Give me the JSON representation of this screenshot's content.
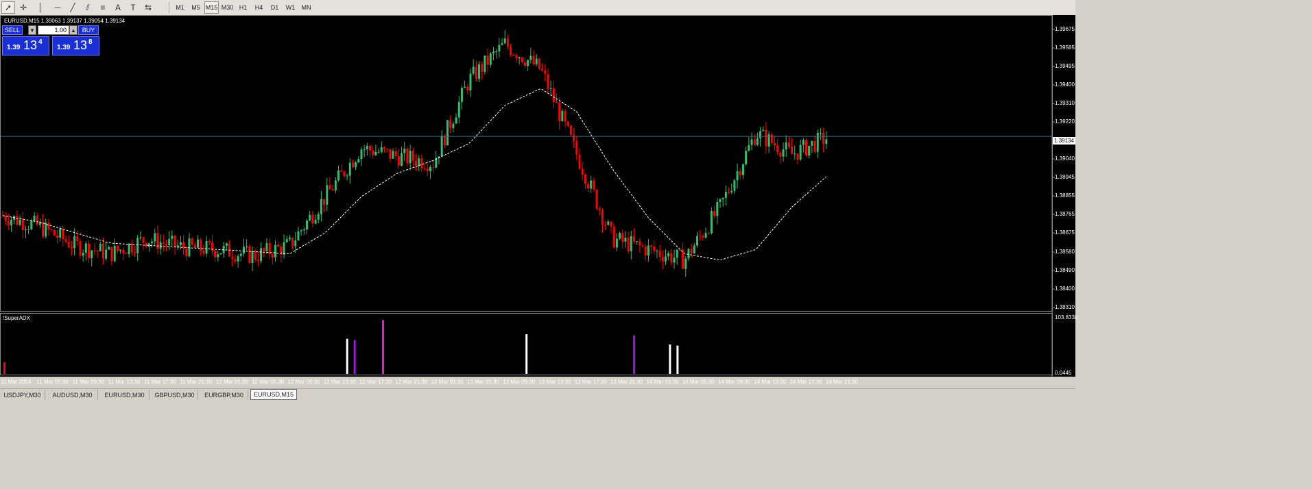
{
  "toolbar": {
    "tools": [
      {
        "name": "cursor-icon",
        "glyph": "➚"
      },
      {
        "name": "crosshair-icon",
        "glyph": "✛"
      },
      {
        "name": "vertical-line-icon",
        "glyph": "│"
      },
      {
        "name": "horizontal-line-icon",
        "glyph": "─"
      },
      {
        "name": "trendline-icon",
        "glyph": "╱"
      },
      {
        "name": "channel-icon",
        "glyph": "⫽"
      },
      {
        "name": "fibonacci-icon",
        "glyph": "≡"
      },
      {
        "name": "text-icon",
        "glyph": "A"
      },
      {
        "name": "text-label-icon",
        "glyph": "T"
      },
      {
        "name": "arrows-icon",
        "glyph": "⇆"
      }
    ],
    "periods": [
      "M1",
      "M5",
      "M15",
      "M30",
      "H1",
      "H4",
      "D1",
      "W1",
      "MN"
    ],
    "active_period": "M15"
  },
  "chart": {
    "symbol_line": "EURUSD,M15  1.39063 1.39137 1.39054 1.39134",
    "trade_panel": {
      "sell_label": "SELL",
      "buy_label": "BUY",
      "lot": "1.00",
      "sell_small": "1.39",
      "sell_big": "13",
      "sell_sup": "4",
      "buy_small": "1.39",
      "buy_big": "13",
      "buy_sup": "8"
    },
    "current_price": "1.39134",
    "price_axis": [
      "1.39675",
      "1.39585",
      "1.39495",
      "1.39400",
      "1.39310",
      "1.39220",
      "1.39040",
      "1.38945",
      "1.38855",
      "1.38765",
      "1.38675",
      "1.38580",
      "1.38490",
      "1.38400",
      "1.38310"
    ],
    "indicator_name": "!SuperADX",
    "indicator_axis_top": "103.8338",
    "indicator_axis_bottom": "0.0445",
    "time_axis": [
      "11 Mar 2014",
      "11 Mar 05:30",
      "11 Mar 09:30",
      "11 Mar 13:30",
      "11 Mar 17:30",
      "11 Mar 21:30",
      "12 Mar 01:30",
      "12 Mar 05:30",
      "12 Mar 09:30",
      "12 Mar 13:30",
      "12 Mar 17:30",
      "12 Mar 21:30",
      "13 Mar 01:30",
      "13 Mar 05:30",
      "13 Mar 09:30",
      "13 Mar 13:30",
      "13 Mar 17:30",
      "13 Mar 21:30",
      "14 Mar 01:30",
      "14 Mar 05:30",
      "14 Mar 09:30",
      "14 Mar 13:30",
      "14 Mar 17:30",
      "14 Mar 21:30"
    ],
    "colors": {
      "bull": "#2fbf71",
      "bear": "#ff0000",
      "ma": "#ffffff",
      "grid": "#3d6b8a",
      "bar_white": "#ffffff",
      "bar_purple": "#9a19d6",
      "bar_magenta": "#e21cc8"
    }
  },
  "chart_data": {
    "type": "candlestick",
    "title": "EURUSD,M15",
    "x": [
      "11 Mar 2014",
      "11 Mar 05:30",
      "11 Mar 09:30",
      "11 Mar 13:30",
      "11 Mar 17:30",
      "11 Mar 21:30",
      "12 Mar 01:30",
      "12 Mar 05:30",
      "12 Mar 09:30",
      "12 Mar 13:30",
      "12 Mar 17:30",
      "12 Mar 21:30",
      "13 Mar 01:30",
      "13 Mar 05:30",
      "13 Mar 09:30",
      "13 Mar 13:30",
      "13 Mar 17:30",
      "13 Mar 21:30",
      "14 Mar 01:30",
      "14 Mar 05:30",
      "14 Mar 09:30",
      "14 Mar 13:30",
      "14 Mar 17:30",
      "14 Mar 21:30"
    ],
    "close_approx": [
      1.3876,
      1.3871,
      1.3862,
      1.3858,
      1.3865,
      1.3861,
      1.386,
      1.3857,
      1.3862,
      1.3885,
      1.3908,
      1.3904,
      1.3901,
      1.394,
      1.3957,
      1.3945,
      1.3905,
      1.3865,
      1.386,
      1.3855,
      1.388,
      1.3915,
      1.3905,
      1.3913
    ],
    "ma_approx": [
      1.3876,
      1.3873,
      1.3868,
      1.3863,
      1.3862,
      1.3861,
      1.386,
      1.3859,
      1.3858,
      1.3868,
      1.3885,
      1.3896,
      1.3902,
      1.391,
      1.3928,
      1.3936,
      1.3925,
      1.3898,
      1.3875,
      1.3858,
      1.3855,
      1.386,
      1.388,
      1.3895
    ],
    "current_price": 1.39134,
    "ylim": [
      1.3831,
      1.397
    ],
    "indicator": {
      "name": "!SuperADX",
      "ylim": [
        0.0445,
        103.8338
      ],
      "bars": [
        {
          "x": "12 Mar 13:30",
          "value": 62,
          "color": "white"
        },
        {
          "x": "12 Mar 13:30",
          "value": 60,
          "color": "purple"
        },
        {
          "x": "12 Mar 17:30",
          "value": 95,
          "color": "magenta"
        },
        {
          "x": "13 Mar 09:30",
          "value": 70,
          "color": "white"
        },
        {
          "x": "13 Mar 21:30",
          "value": 68,
          "color": "purple"
        },
        {
          "x": "14 Mar 01:30",
          "value": 52,
          "color": "white"
        },
        {
          "x": "14 Mar 01:30",
          "value": 50,
          "color": "white"
        }
      ]
    }
  },
  "tabs": [
    "USDJPY,M30",
    "AUDUSD,M30",
    "EURUSD,M30",
    "GBPUSD,M30",
    "EURGBP,M30",
    "EURUSD,M15"
  ],
  "active_tab": "EURUSD,M15"
}
